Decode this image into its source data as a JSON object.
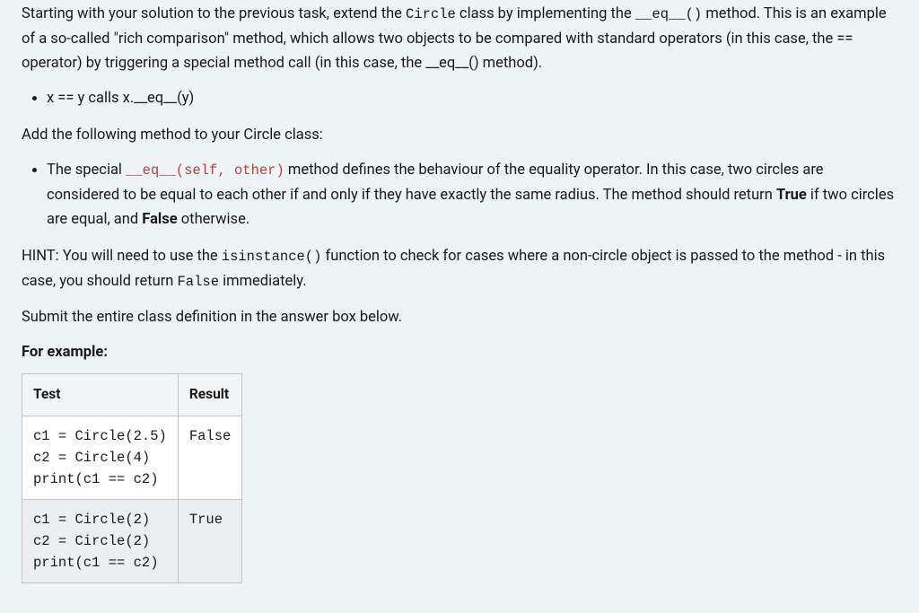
{
  "intro": {
    "part1": "Starting with your solution to the previous task, extend the ",
    "code1": "Circle",
    "part2": " class by implementing the ",
    "code2": "__eq__()",
    "part3": " method. This is an example of a so-called \"rich comparison\" method, which allows two objects to be compared with standard operators (in this case, the == operator) by triggering a special method call (in this case, the __eq__() method)."
  },
  "bullet1": "x == y calls x.__eq__(y)",
  "addMethod": "Add the following method to your Circle class:",
  "bullet2": {
    "p1": "The special ",
    "code": "__eq__(self, other)",
    "p2": " method defines the behaviour of the equality operator. In this case, two circles are considered to be equal to each other if and only if they have exactly the same radius. The method should return ",
    "bold1": "True",
    "p3": " if two circles are equal, and ",
    "bold2": "False",
    "p4": " otherwise."
  },
  "hint": {
    "p1": "HINT: You will need to use the ",
    "code1": "isinstance()",
    "p2": " function to check for cases where a non-circle object is passed to the method - in this case, you should return ",
    "code2": "False",
    "p3": " immediately."
  },
  "submit": "Submit the entire class definition in the answer box below.",
  "forExample": "For example:",
  "table": {
    "headers": {
      "test": "Test",
      "result": "Result"
    },
    "rows": [
      {
        "test": "c1 = Circle(2.5)\nc2 = Circle(4)\nprint(c1 == c2)\n",
        "result": "False"
      },
      {
        "test": "c1 = Circle(2)\nc2 = Circle(2)\nprint(c1 == c2)\n",
        "result": "True"
      }
    ]
  },
  "style": {
    "background": "#eef3f5",
    "text_color": "#1a1a1a",
    "code_color": "#b84040",
    "table_border": "#c0c4c8",
    "table_header_bg": "#f3f4f6",
    "table_row_alt_bg": "#eceeef",
    "font_size_body": 16.5,
    "font_size_mono": 15.5,
    "line_height": 1.65
  }
}
